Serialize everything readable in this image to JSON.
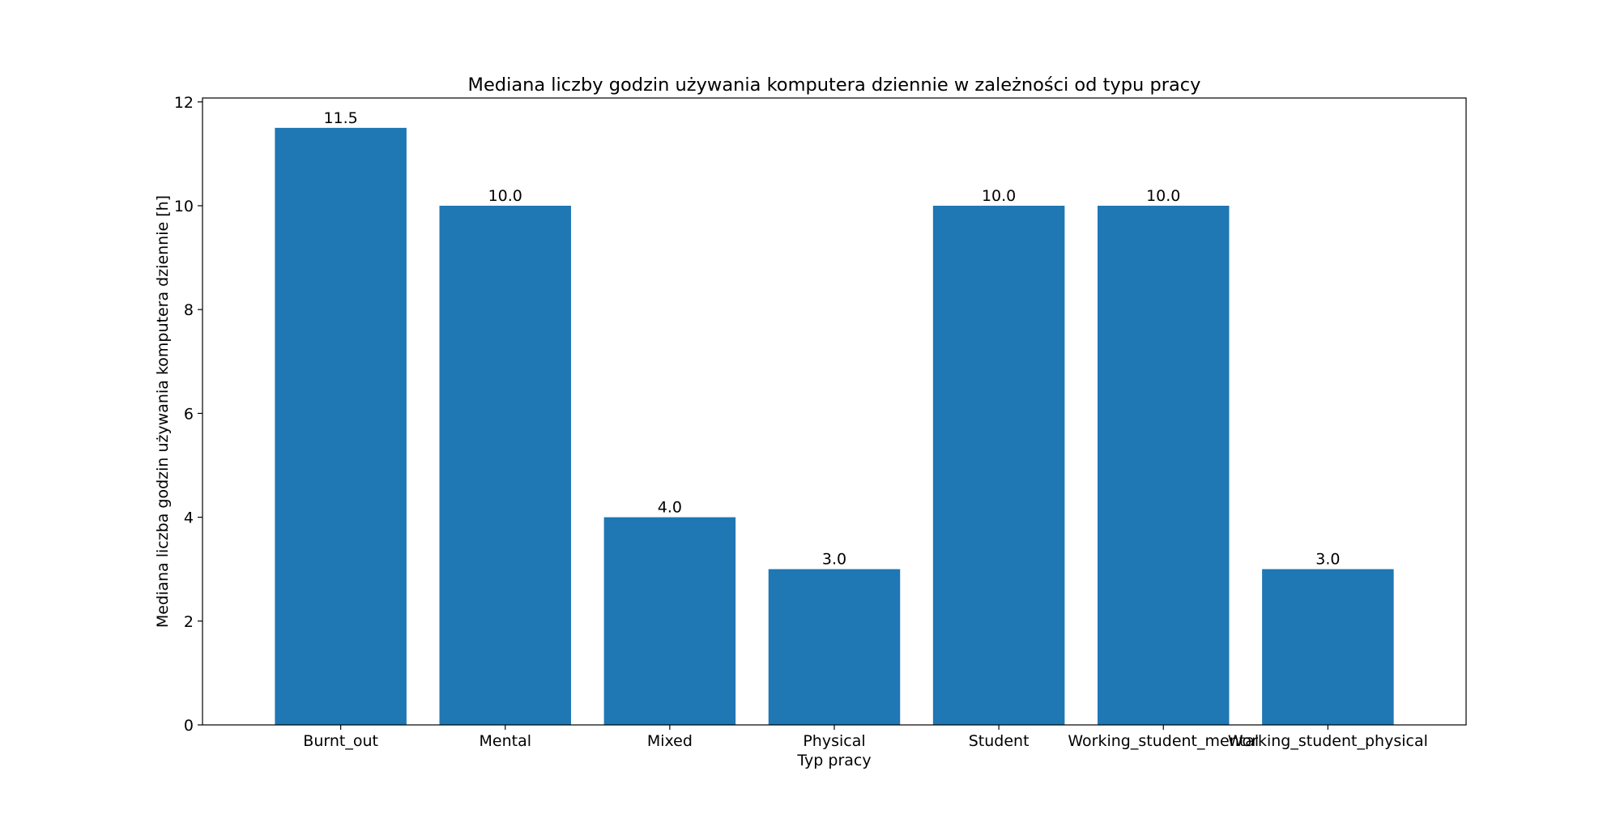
{
  "chart_data": {
    "type": "bar",
    "title": "Mediana liczby godzin używania komputera dziennie w zależności od typu pracy",
    "xlabel": "Typ pracy",
    "ylabel": "Mediana liczba godzin używania komputera dziennie [h]",
    "categories": [
      "Burnt_out",
      "Mental",
      "Mixed",
      "Physical",
      "Student",
      "Working_student_mental",
      "Working_student_physical"
    ],
    "values": [
      11.5,
      10.0,
      4.0,
      3.0,
      10.0,
      10.0,
      3.0
    ],
    "value_labels": [
      "11.5",
      "10.0",
      "4.0",
      "3.0",
      "10.0",
      "10.0",
      "3.0"
    ],
    "yticks": [
      0,
      2,
      4,
      6,
      8,
      10,
      12
    ],
    "ylim": [
      0,
      12.075
    ],
    "bar_color": "#1f77b4",
    "grid": false,
    "legend": "none"
  }
}
